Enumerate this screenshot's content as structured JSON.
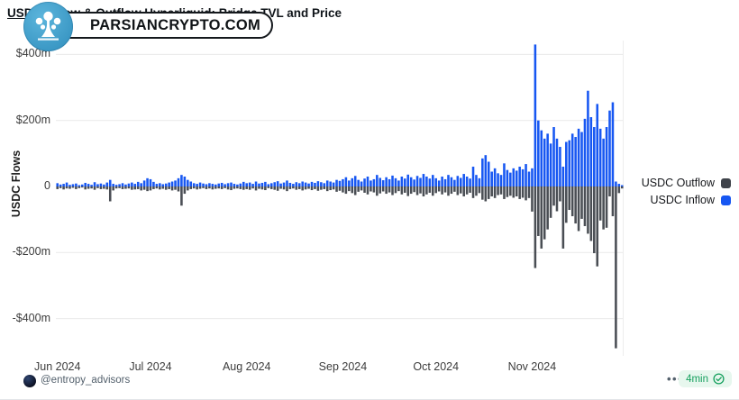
{
  "watermark": {
    "text": "PARSIANCRYPTO.COM",
    "logo": "tree-splash-icon"
  },
  "header": {
    "title_link": "USDC Inflow & Outflow Hyperliquid",
    "title_rest": ": Bridge TVL and Price"
  },
  "legend": [
    {
      "label": "USDC Outflow",
      "color": "#3f434a"
    },
    {
      "label": "USDC Inflow",
      "color": "#1757f2"
    }
  ],
  "footer": {
    "handle": "@entropy_advisors",
    "menu": "•••",
    "badge": {
      "text": "4min",
      "icon": "check-circle",
      "color": "#16a05e",
      "bg": "#e7f7ee"
    }
  },
  "chart_data": {
    "type": "bar",
    "title": "USDC Inflow & Outflow Hyperliquid: Bridge TVL and Price",
    "xlabel": "",
    "ylabel": "USDC Flows",
    "unit": "USD millions",
    "x_start": "2024-06-01",
    "x_interval": "daily",
    "x_tick_labels": [
      "Jun 2024",
      "Jul 2024",
      "Aug 2024",
      "Sep 2024",
      "Oct 2024",
      "Nov 2024"
    ],
    "x_tick_day_offsets": [
      0,
      30,
      61,
      92,
      122,
      153
    ],
    "y_tick_labels": [
      "$400m",
      "$200m",
      "0",
      "-$200m",
      "-$400m"
    ],
    "y_tick_values": [
      400,
      200,
      0,
      -200,
      -400
    ],
    "ylim": [
      -500,
      445
    ],
    "grid": "horizontal",
    "legend_position": "right",
    "bar_colors": {
      "inflow": "#1757f2",
      "outflow": "#4a4e54"
    },
    "series": [
      {
        "name": "USDC Inflow",
        "color": "#1757f2",
        "values": [
          10,
          6,
          8,
          12,
          5,
          7,
          9,
          4,
          6,
          11,
          8,
          5,
          13,
          7,
          9,
          6,
          12,
          20,
          8,
          5,
          7,
          10,
          6,
          9,
          12,
          8,
          14,
          10,
          18,
          25,
          22,
          14,
          8,
          10,
          7,
          9,
          12,
          15,
          18,
          25,
          35,
          30,
          20,
          15,
          10,
          8,
          12,
          9,
          7,
          10,
          8,
          6,
          9,
          11,
          7,
          10,
          12,
          8,
          6,
          9,
          14,
          10,
          12,
          8,
          15,
          9,
          11,
          14,
          7,
          10,
          13,
          16,
          9,
          12,
          18,
          11,
          8,
          13,
          10,
          15,
          12,
          9,
          14,
          11,
          16,
          13,
          10,
          18,
          15,
          12,
          20,
          17,
          22,
          28,
          18,
          25,
          32,
          20,
          15,
          24,
          30,
          18,
          22,
          35,
          26,
          19,
          28,
          22,
          33,
          25,
          18,
          30,
          24,
          36,
          28,
          21,
          32,
          26,
          38,
          30,
          24,
          35,
          25,
          18,
          30,
          22,
          35,
          28,
          20,
          32,
          26,
          38,
          30,
          24,
          60,
          35,
          25,
          85,
          95,
          75,
          45,
          55,
          40,
          35,
          70,
          50,
          42,
          55,
          48,
          60,
          52,
          68,
          45,
          55,
          430,
          200,
          170,
          145,
          160,
          130,
          180,
          145,
          120,
          60,
          135,
          140,
          160,
          150,
          175,
          165,
          205,
          290,
          210,
          180,
          250,
          175,
          145,
          180,
          230,
          255,
          15,
          8,
          4
        ]
      },
      {
        "name": "USDC Outflow",
        "color": "#4a4e54",
        "values": [
          -8,
          -5,
          -9,
          -6,
          -7,
          -4,
          -8,
          -5,
          -3,
          -9,
          -7,
          -6,
          -10,
          -5,
          -8,
          -7,
          -9,
          -45,
          -12,
          -6,
          -5,
          -8,
          -7,
          -6,
          -10,
          -9,
          -8,
          -12,
          -10,
          -14,
          -12,
          -8,
          -6,
          -9,
          -7,
          -10,
          -8,
          -12,
          -10,
          -15,
          -58,
          -22,
          -12,
          -8,
          -6,
          -9,
          -7,
          -5,
          -8,
          -6,
          -9,
          -7,
          -6,
          -8,
          -5,
          -9,
          -11,
          -7,
          -6,
          -8,
          -10,
          -8,
          -10,
          -6,
          -12,
          -7,
          -9,
          -11,
          -5,
          -8,
          -10,
          -13,
          -7,
          -9,
          -14,
          -8,
          -6,
          -10,
          -8,
          -12,
          -9,
          -7,
          -11,
          -8,
          -13,
          -10,
          -8,
          -14,
          -11,
          -9,
          -16,
          -13,
          -18,
          -22,
          -14,
          -20,
          -26,
          -16,
          -12,
          -19,
          -24,
          -15,
          -18,
          -28,
          -21,
          -15,
          -22,
          -18,
          -26,
          -20,
          -14,
          -24,
          -19,
          -29,
          -22,
          -17,
          -26,
          -21,
          -30,
          -24,
          -19,
          -28,
          -20,
          -15,
          -24,
          -18,
          -28,
          -22,
          -16,
          -26,
          -21,
          -30,
          -24,
          -19,
          -35,
          -28,
          -20,
          -40,
          -45,
          -38,
          -30,
          -35,
          -26,
          -24,
          -38,
          -32,
          -28,
          -34,
          -30,
          -38,
          -34,
          -42,
          -35,
          -76,
          -247,
          -150,
          -188,
          -160,
          -130,
          -95,
          -58,
          -75,
          -45,
          -188,
          -110,
          -71,
          -90,
          -112,
          -135,
          -98,
          -120,
          -143,
          -165,
          -202,
          -242,
          -103,
          -130,
          -125,
          -30,
          -90,
          -490,
          -20,
          -6
        ]
      }
    ]
  }
}
